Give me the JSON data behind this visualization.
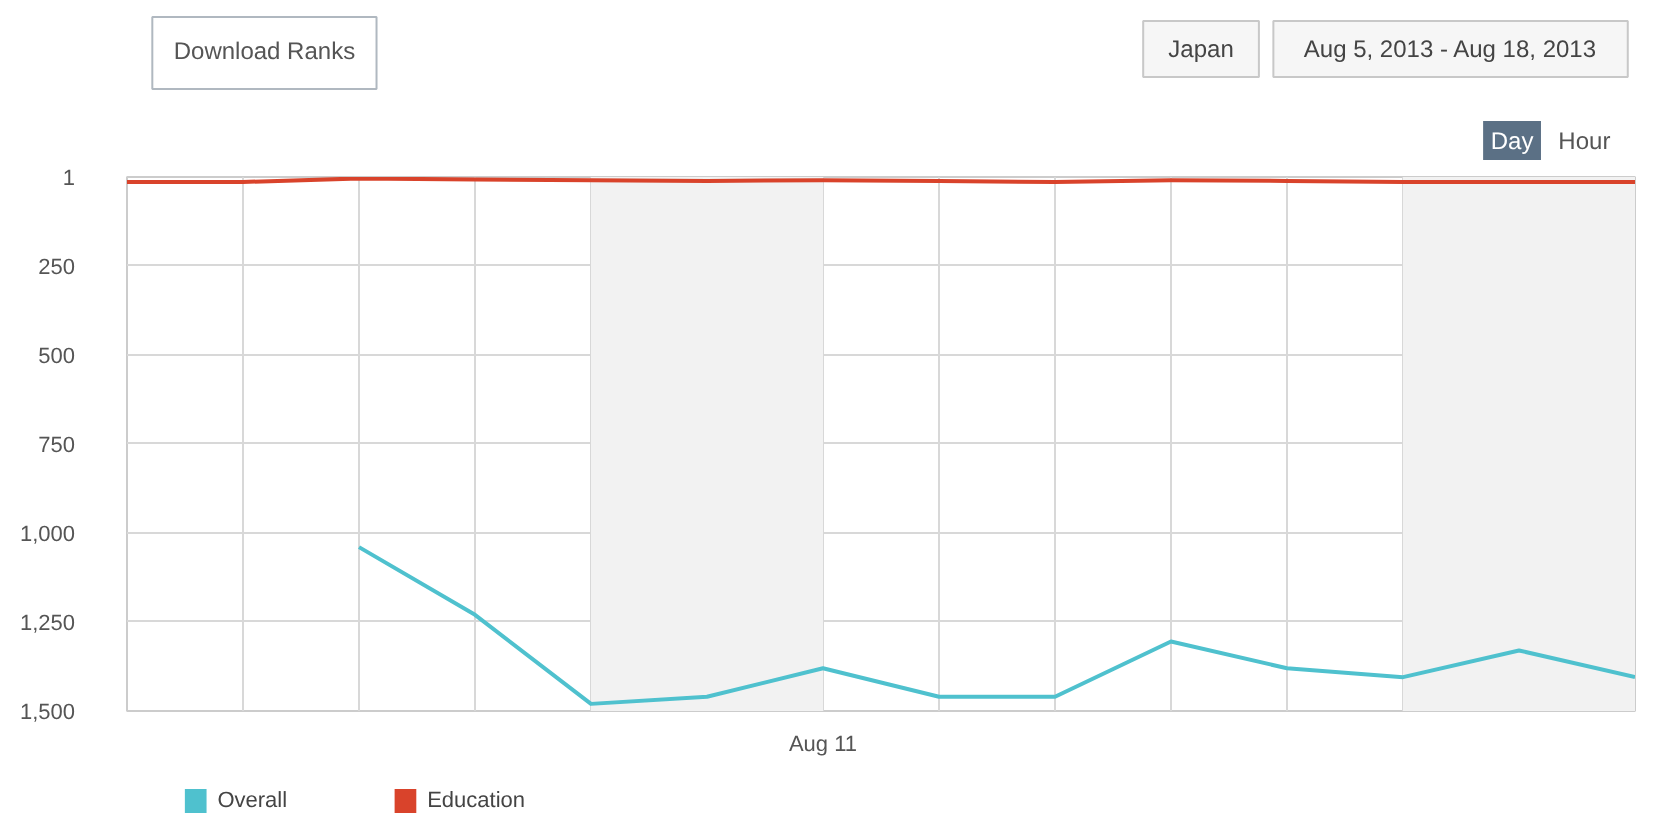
{
  "chart_data": {
    "type": "line",
    "title": "Download Ranks",
    "annotations": [
      "Japan",
      "Aug 5, 2013 - Aug 18, 2013",
      "Day",
      "Hour"
    ],
    "categories": [
      null,
      null,
      null,
      null,
      null,
      null,
      "Aug 11",
      null,
      null,
      null,
      null,
      null,
      null,
      null
    ],
    "series": [
      {
        "name": "Overall",
        "color": "#4fc1ce",
        "values": [
          null,
          null,
          1040,
          1230,
          1480,
          1460,
          1380,
          1460,
          1460,
          1305,
          1380,
          1405,
          1330,
          1405
        ]
      },
      {
        "name": "Education",
        "color": "#d9432b",
        "values": [
          15,
          15,
          5,
          8,
          10,
          12,
          10,
          12,
          15,
          10,
          12,
          15,
          15,
          15
        ]
      }
    ],
    "ylim": [
      1500,
      1
    ],
    "yticks": [
      1,
      250,
      500,
      750,
      {
        "value": 1000,
        "label": "1,000"
      },
      {
        "value": 1250,
        "label": "1,250"
      },
      {
        "value": 1500,
        "label": "1,500"
      }
    ],
    "grid": true,
    "legend": "bottom left",
    "line_style": "solid"
  }
}
